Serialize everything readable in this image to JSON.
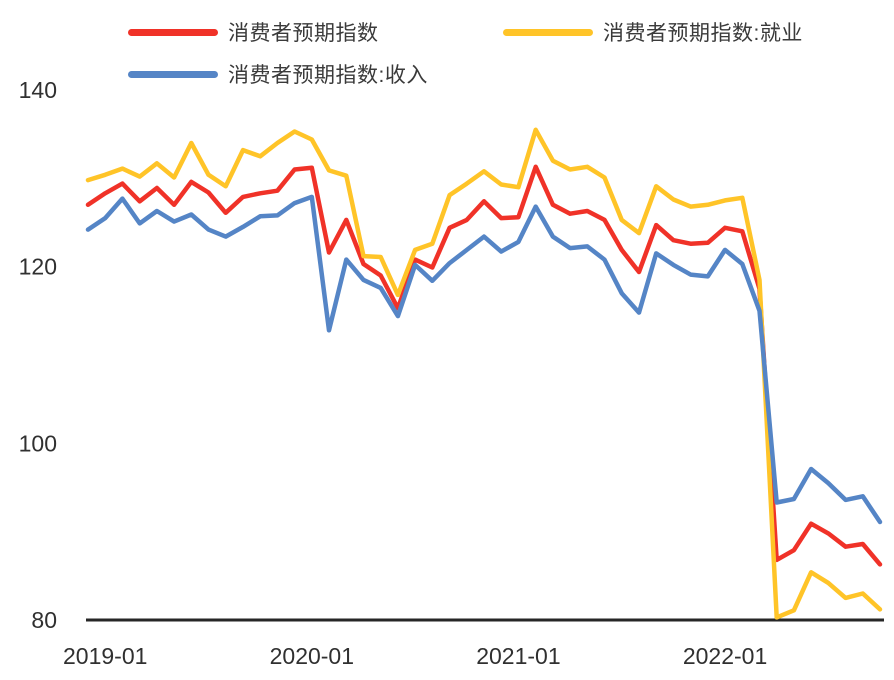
{
  "chart_data": {
    "type": "line",
    "title": "",
    "xlabel": "",
    "ylabel": "",
    "ylim": [
      80,
      140
    ],
    "yticks": [
      80,
      100,
      120,
      140
    ],
    "xticks": [
      "2019-01",
      "2020-01",
      "2021-01",
      "2022-01"
    ],
    "grid": false,
    "legend_position": "top",
    "axis_line_color": "#262626",
    "tick_label_color": "#303030",
    "x": [
      "2018-12",
      "2019-01",
      "2019-02",
      "2019-03",
      "2019-04",
      "2019-05",
      "2019-06",
      "2019-07",
      "2019-08",
      "2019-09",
      "2019-10",
      "2019-11",
      "2019-12",
      "2020-01",
      "2020-02",
      "2020-03",
      "2020-04",
      "2020-05",
      "2020-06",
      "2020-07",
      "2020-08",
      "2020-09",
      "2020-10",
      "2020-11",
      "2020-12",
      "2021-01",
      "2021-02",
      "2021-03",
      "2021-04",
      "2021-05",
      "2021-06",
      "2021-07",
      "2021-08",
      "2021-09",
      "2021-10",
      "2021-11",
      "2021-12",
      "2022-01",
      "2022-02",
      "2022-03",
      "2022-04",
      "2022-05",
      "2022-06",
      "2022-07",
      "2022-08",
      "2022-09",
      "2022-10"
    ],
    "series": [
      {
        "name": "消费者预期指数",
        "color": "#F03228",
        "values": [
          127.0,
          128.3,
          129.4,
          127.4,
          128.9,
          127.0,
          129.6,
          128.4,
          126.1,
          127.9,
          128.3,
          128.6,
          131.0,
          131.2,
          121.6,
          125.3,
          120.3,
          119.0,
          115.3,
          120.8,
          119.9,
          124.4,
          125.3,
          127.4,
          125.5,
          125.6,
          131.3,
          127.0,
          126.0,
          126.3,
          125.3,
          121.9,
          119.4,
          124.7,
          123.0,
          122.6,
          122.7,
          124.4,
          124.0,
          117.5,
          86.8,
          87.9,
          90.9,
          89.8,
          88.3,
          88.6,
          86.3
        ]
      },
      {
        "name": "消费者预期指数:就业",
        "color": "#FFC428",
        "values": [
          129.8,
          130.4,
          131.1,
          130.2,
          131.7,
          130.1,
          134.0,
          130.4,
          129.1,
          133.2,
          132.5,
          134.0,
          135.3,
          134.4,
          130.9,
          130.3,
          121.2,
          121.1,
          116.8,
          121.9,
          122.6,
          128.1,
          129.4,
          130.8,
          129.3,
          129.0,
          135.5,
          132.0,
          131.0,
          131.3,
          130.1,
          125.3,
          123.8,
          129.1,
          127.6,
          126.8,
          127.0,
          127.5,
          127.8,
          118.5,
          80.3,
          81.1,
          85.4,
          84.2,
          82.5,
          83.0,
          81.2
        ]
      },
      {
        "name": "消费者预期指数:收入",
        "color": "#5585C6",
        "values": [
          124.2,
          125.5,
          127.7,
          124.9,
          126.3,
          125.1,
          125.9,
          124.2,
          123.4,
          124.5,
          125.7,
          125.8,
          127.2,
          127.9,
          112.8,
          120.8,
          118.5,
          117.6,
          114.4,
          120.2,
          118.4,
          120.4,
          121.9,
          123.4,
          121.7,
          122.8,
          126.8,
          123.4,
          122.1,
          122.3,
          120.8,
          117.0,
          114.8,
          121.5,
          120.2,
          119.1,
          118.9,
          121.9,
          120.3,
          115.0,
          93.3,
          93.7,
          97.1,
          95.5,
          93.6,
          94.0,
          91.1
        ]
      }
    ]
  }
}
